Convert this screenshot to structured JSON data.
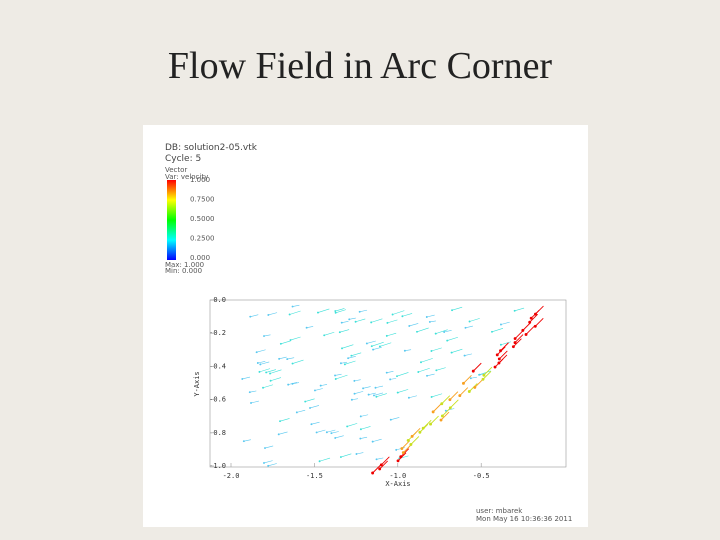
{
  "slide": {
    "title": "Flow Field in Arc Corner"
  },
  "plot": {
    "database": "DB: solution2-05.vtk",
    "cycle": "Cycle: 5",
    "legend": {
      "plot_name": "Vector",
      "variable": "Var: velocity",
      "labels": [
        "1.000",
        "0.7500",
        "0.5000",
        "0.2500",
        "0.000"
      ],
      "max": "Max: 1.000",
      "min": "Min: 0.000"
    },
    "y_axis": {
      "label": "Y-Axis",
      "ticks": [
        "0.0",
        "-0.2",
        "-0.4",
        "-0.6",
        "-0.8",
        "-1.0"
      ]
    },
    "x_axis": {
      "label": "X-Axis",
      "ticks": [
        "-2.0",
        "-1.5",
        "-1.0",
        "-0.5"
      ]
    },
    "user": "user: mbarek",
    "date": "Mon May 16 10:36:36 2011"
  }
}
